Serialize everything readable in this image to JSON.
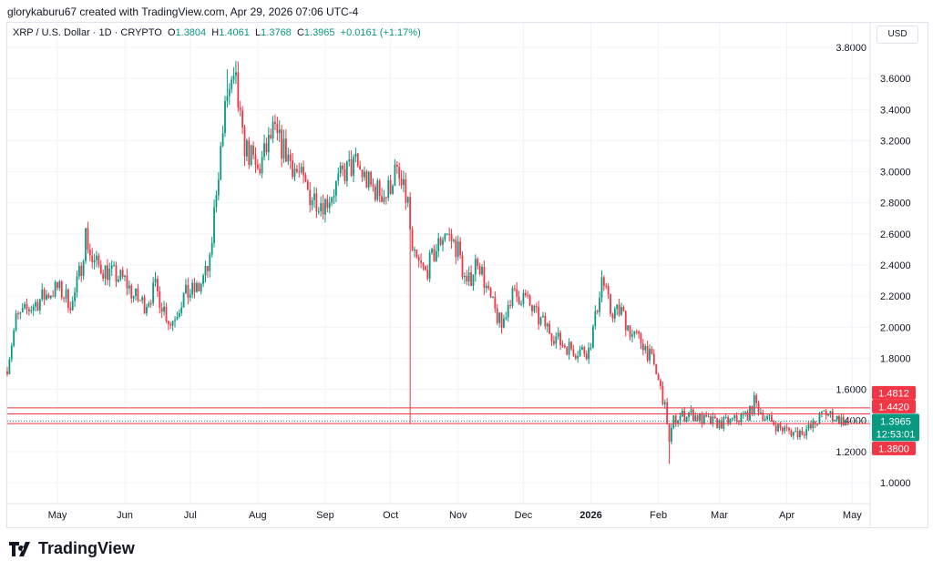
{
  "header": {
    "credit": "glorykaburu67 created with TradingView.com, Apr 29, 2026 07:06 UTC-4",
    "currency": "USD"
  },
  "legend": {
    "symbol": "XRP / U.S. Dollar · 1D · CRYPTO",
    "o_label": "O",
    "o": "1.3804",
    "h_label": "H",
    "h": "1.4061",
    "l_label": "L",
    "l": "1.3768",
    "c_label": "C",
    "c": "1.3965",
    "change": "+0.0161 (+1.17%)"
  },
  "colors": {
    "up": "#089981",
    "down": "#f23645",
    "grid": "#f0f3fa"
  },
  "footer": {
    "logo": "TradingView"
  },
  "chart_data": {
    "type": "candlestick",
    "title": "XRP / U.S. Dollar · 1D · CRYPTO",
    "ylim": [
      0.9,
      3.85
    ],
    "yticks": [
      "1.0000",
      "1.2000",
      "1.4000",
      "1.6000",
      "1.8000",
      "2.0000",
      "2.2000",
      "2.4000",
      "2.6000",
      "2.8000",
      "3.0000",
      "3.2000",
      "3.4000",
      "3.6000",
      "3.8000"
    ],
    "xticks": [
      {
        "date": "2025-05-01",
        "label": "May"
      },
      {
        "date": "2025-06-01",
        "label": "Jun"
      },
      {
        "date": "2025-07-01",
        "label": "Jul"
      },
      {
        "date": "2025-08-01",
        "label": "Aug"
      },
      {
        "date": "2025-09-01",
        "label": "Sep"
      },
      {
        "date": "2025-10-01",
        "label": "Oct"
      },
      {
        "date": "2025-11-01",
        "label": "Nov"
      },
      {
        "date": "2025-12-01",
        "label": "Dec"
      },
      {
        "date": "2026-01-01",
        "label": "2026"
      },
      {
        "date": "2026-02-01",
        "label": "Feb"
      },
      {
        "date": "2026-03-01",
        "label": "Mar"
      },
      {
        "date": "2026-04-01",
        "label": "Apr"
      },
      {
        "date": "2026-05-01",
        "label": "May"
      }
    ],
    "xrange": [
      "2025-04-08",
      "2026-05-10"
    ],
    "approx_closes": [
      [
        "2025-04-08",
        1.75
      ],
      [
        "2025-04-12",
        2.05
      ],
      [
        "2025-04-25",
        2.2
      ],
      [
        "2025-05-01",
        2.25
      ],
      [
        "2025-05-08",
        2.15
      ],
      [
        "2025-05-12",
        2.4
      ],
      [
        "2025-05-14",
        2.6
      ],
      [
        "2025-05-17",
        2.42
      ],
      [
        "2025-05-25",
        2.35
      ],
      [
        "2025-06-01",
        2.3
      ],
      [
        "2025-06-05",
        2.2
      ],
      [
        "2025-06-10",
        2.15
      ],
      [
        "2025-06-15",
        2.25
      ],
      [
        "2025-06-22",
        2.02
      ],
      [
        "2025-06-28",
        2.2
      ],
      [
        "2025-07-05",
        2.25
      ],
      [
        "2025-07-10",
        2.4
      ],
      [
        "2025-07-13",
        2.9
      ],
      [
        "2025-07-18",
        3.5
      ],
      [
        "2025-07-22",
        3.55
      ],
      [
        "2025-07-25",
        3.2
      ],
      [
        "2025-08-01",
        3.0
      ],
      [
        "2025-08-08",
        3.25
      ],
      [
        "2025-08-15",
        3.1
      ],
      [
        "2025-08-25",
        2.85
      ],
      [
        "2025-09-01",
        2.8
      ],
      [
        "2025-09-10",
        3.0
      ],
      [
        "2025-09-15",
        3.05
      ],
      [
        "2025-09-22",
        2.9
      ],
      [
        "2025-09-29",
        2.85
      ],
      [
        "2025-10-03",
        3.0
      ],
      [
        "2025-10-09",
        2.8
      ],
      [
        "2025-10-11",
        2.45
      ],
      [
        "2025-10-17",
        2.35
      ],
      [
        "2025-10-22",
        2.5
      ],
      [
        "2025-10-26",
        2.62
      ],
      [
        "2025-11-01",
        2.5
      ],
      [
        "2025-11-05",
        2.25
      ],
      [
        "2025-11-10",
        2.45
      ],
      [
        "2025-11-15",
        2.2
      ],
      [
        "2025-11-21",
        2.0
      ],
      [
        "2025-11-25",
        2.2
      ],
      [
        "2025-12-01",
        2.2
      ],
      [
        "2025-12-08",
        2.05
      ],
      [
        "2025-12-12",
        2.0
      ],
      [
        "2025-12-18",
        1.9
      ],
      [
        "2025-12-25",
        1.85
      ],
      [
        "2025-12-31",
        1.85
      ],
      [
        "2026-01-03",
        2.05
      ],
      [
        "2026-01-06",
        2.32
      ],
      [
        "2026-01-10",
        2.1
      ],
      [
        "2026-01-15",
        2.1
      ],
      [
        "2026-01-20",
        1.95
      ],
      [
        "2026-01-25",
        1.9
      ],
      [
        "2026-01-30",
        1.75
      ],
      [
        "2026-02-03",
        1.55
      ],
      [
        "2026-02-05",
        1.4
      ],
      [
        "2026-02-06",
        1.25
      ],
      [
        "2026-02-08",
        1.4
      ],
      [
        "2026-02-15",
        1.45
      ],
      [
        "2026-02-22",
        1.4
      ],
      [
        "2026-03-01",
        1.38
      ],
      [
        "2026-03-08",
        1.4
      ],
      [
        "2026-03-15",
        1.45
      ],
      [
        "2026-03-17",
        1.52
      ],
      [
        "2026-03-22",
        1.42
      ],
      [
        "2026-03-29",
        1.35
      ],
      [
        "2026-04-05",
        1.32
      ],
      [
        "2026-04-12",
        1.35
      ],
      [
        "2026-04-18",
        1.45
      ],
      [
        "2026-04-22",
        1.43
      ],
      [
        "2026-04-26",
        1.4
      ],
      [
        "2026-04-29",
        1.3965
      ]
    ],
    "wicks": [
      {
        "date": "2025-10-10",
        "low": 1.38
      },
      {
        "date": "2026-02-06",
        "low": 1.12
      },
      {
        "date": "2025-07-18",
        "high": 3.66
      }
    ],
    "price_lines": [
      {
        "value": 1.4812,
        "label": "1.4812",
        "color": "#f23645"
      },
      {
        "value": 1.442,
        "label": "1.4420",
        "color": "#f23645"
      },
      {
        "value": 1.38,
        "label": "1.3800",
        "color": "#f23645"
      }
    ],
    "last_price": {
      "value": 1.3965,
      "label": "1.3965",
      "countdown": "12:53:01",
      "color": "#089981"
    },
    "grid": true
  }
}
